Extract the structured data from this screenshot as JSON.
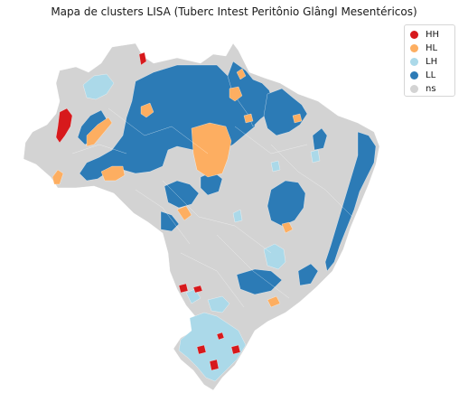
{
  "title": "Mapa de clusters LISA (Tuberc Intest Peritônio Glângl Mesentéricos)",
  "legend": {
    "placement": "top-right",
    "items": [
      {
        "label": "HH",
        "color": "#d7191c"
      },
      {
        "label": "HL",
        "color": "#fdae61"
      },
      {
        "label": "LH",
        "color": "#abd9e9"
      },
      {
        "label": "LL",
        "color": "#2c7bb6"
      },
      {
        "label": "ns",
        "color": "#d3d3d3"
      }
    ]
  },
  "colors": {
    "background": "#ffffff",
    "boundary": "#ffffff"
  }
}
